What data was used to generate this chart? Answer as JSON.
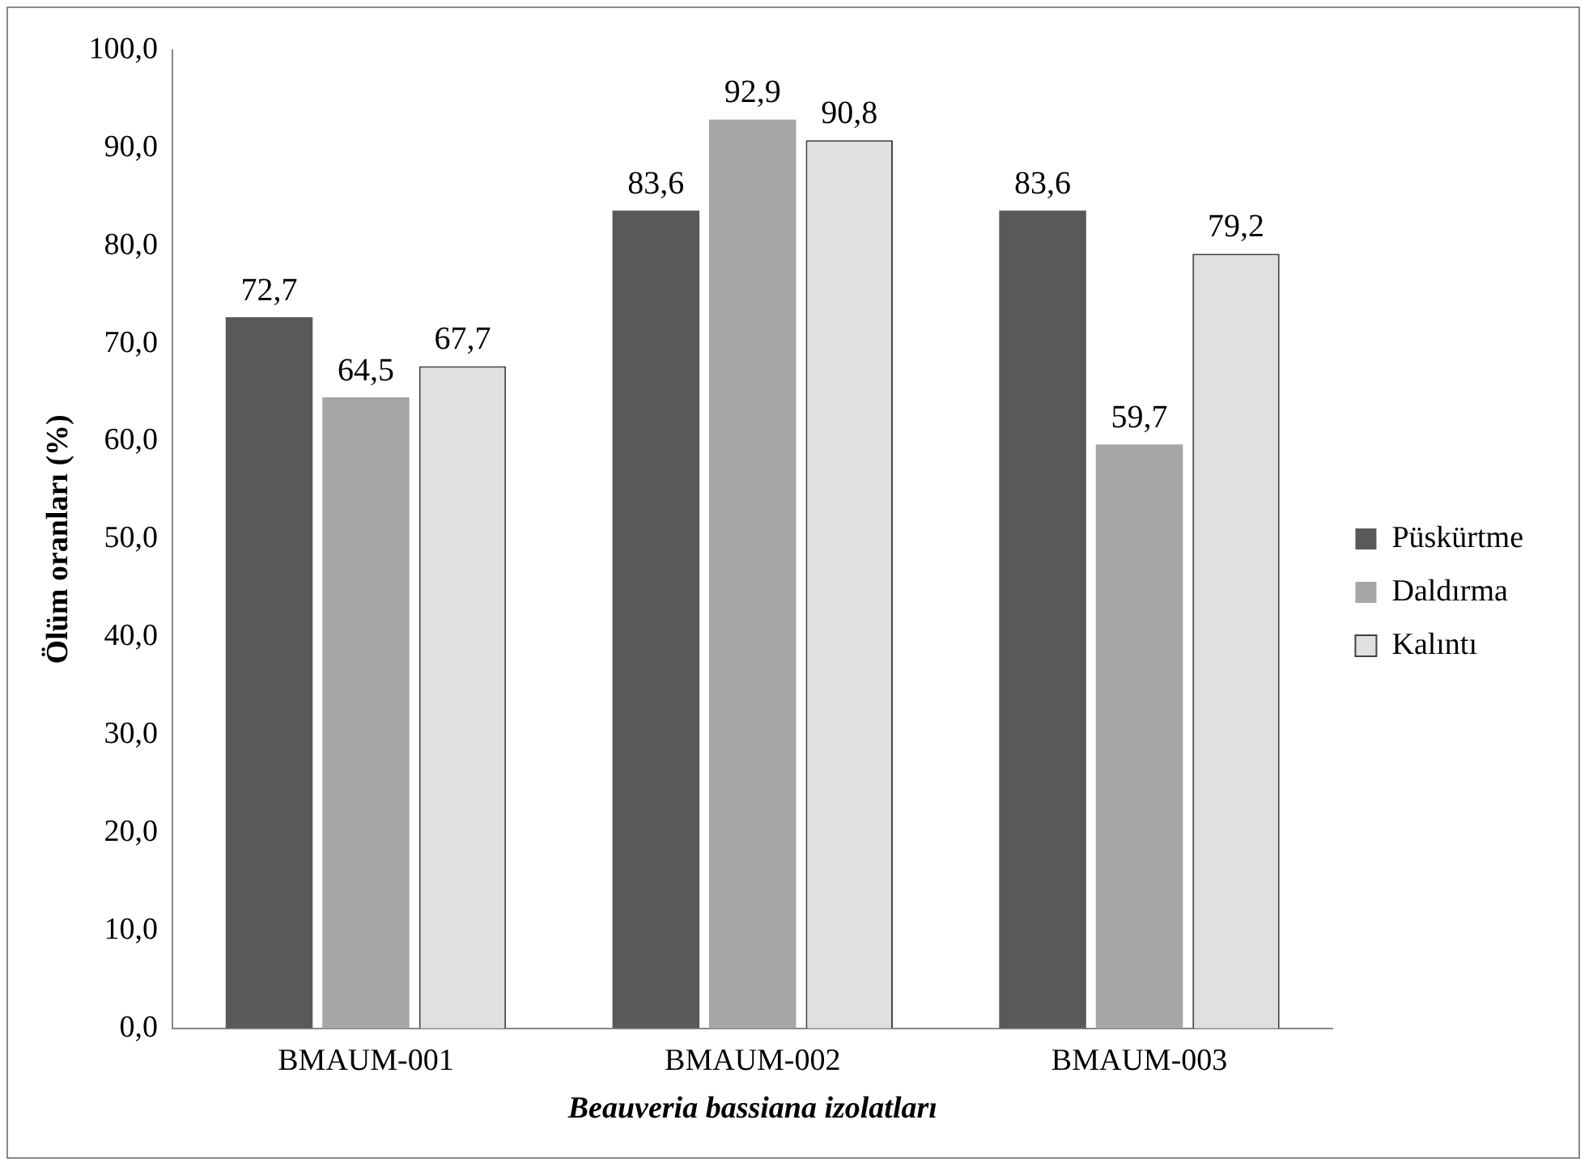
{
  "chart_data": {
    "type": "bar",
    "xlabel": "Beauveria bassiana izolatları",
    "ylabel": "Ölüm oranları (%)",
    "categories": [
      "BMAUM-001",
      "BMAUM-002",
      "BMAUM-003"
    ],
    "series": [
      {
        "name": "Püskürtme",
        "color": "#595959",
        "values": [
          72.7,
          83.6,
          83.6
        ]
      },
      {
        "name": "Daldırma",
        "color": "#a6a6a6",
        "values": [
          64.5,
          92.9,
          59.7
        ]
      },
      {
        "name": "Kalıntı",
        "color": "#e0e0e0",
        "values": [
          67.7,
          90.8,
          79.2
        ]
      }
    ],
    "ylim": [
      0,
      100
    ],
    "yticks": [
      {
        "value": 0,
        "label": "0,0"
      },
      {
        "value": 10,
        "label": "10,0"
      },
      {
        "value": 20,
        "label": "20,0"
      },
      {
        "value": 30,
        "label": "30,0"
      },
      {
        "value": 40,
        "label": "40,0"
      },
      {
        "value": 50,
        "label": "50,0"
      },
      {
        "value": 60,
        "label": "60,0"
      },
      {
        "value": 70,
        "label": "70,0"
      },
      {
        "value": 80,
        "label": "80,0"
      },
      {
        "value": 90,
        "label": "90,0"
      },
      {
        "value": 100,
        "label": "100,0"
      }
    ],
    "value_labels": [
      [
        "72,7",
        "83,6",
        "83,6"
      ],
      [
        "64,5",
        "92,9",
        "59,7"
      ],
      [
        "67,7",
        "90,8",
        "79,2"
      ]
    ],
    "grid": false,
    "legend": "right"
  }
}
